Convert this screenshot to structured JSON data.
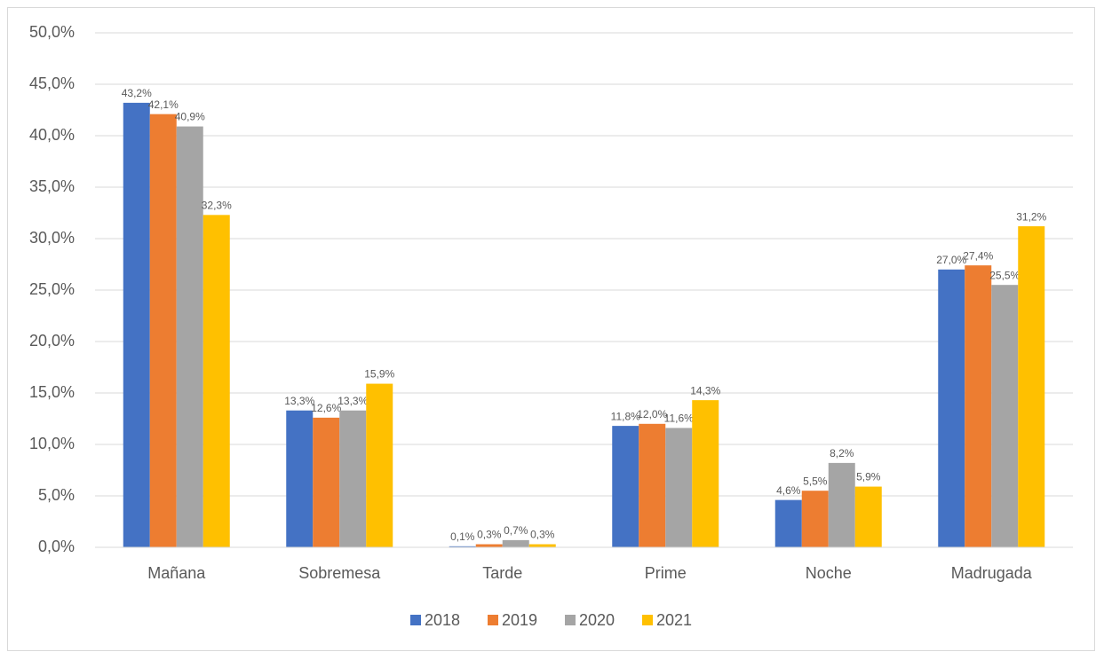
{
  "chart_data": {
    "type": "bar",
    "categories": [
      "Mañana",
      "Sobremesa",
      "Tarde",
      "Prime",
      "Noche",
      "Madrugada"
    ],
    "series": [
      {
        "name": "2018",
        "color": "#4472c4",
        "values": [
          43.2,
          13.3,
          0.1,
          11.8,
          4.6,
          27.0
        ],
        "value_labels": [
          "43,2%",
          "13,3%",
          "0,1%",
          "11,8%",
          "4,6%",
          "27,0%"
        ]
      },
      {
        "name": "2019",
        "color": "#ed7d31",
        "values": [
          42.1,
          12.6,
          0.3,
          12.0,
          5.5,
          27.4
        ],
        "value_labels": [
          "42,1%",
          "12,6%",
          "0,3%",
          "12,0%",
          "5,5%",
          "27,4%"
        ]
      },
      {
        "name": "2020",
        "color": "#a5a5a5",
        "values": [
          40.9,
          13.3,
          0.7,
          11.6,
          8.2,
          25.5
        ],
        "value_labels": [
          "40,9%",
          "13,3%",
          "0,7%",
          "11,6%",
          "8,2%",
          "25,5%"
        ]
      },
      {
        "name": "2021",
        "color": "#ffc000",
        "values": [
          32.3,
          15.9,
          0.3,
          14.3,
          5.9,
          31.2
        ],
        "value_labels": [
          "32,3%",
          "15,9%",
          "0,3%",
          "14,3%",
          "5,9%",
          "31,2%"
        ]
      }
    ],
    "ylim": [
      0,
      50
    ],
    "yticks": [
      {
        "value": 0,
        "label": "0,0%"
      },
      {
        "value": 5,
        "label": "5,0%"
      },
      {
        "value": 10,
        "label": "10,0%"
      },
      {
        "value": 15,
        "label": "15,0%"
      },
      {
        "value": 20,
        "label": "20,0%"
      },
      {
        "value": 25,
        "label": "25,0%"
      },
      {
        "value": 30,
        "label": "30,0%"
      },
      {
        "value": 35,
        "label": "35,0%"
      },
      {
        "value": 40,
        "label": "40,0%"
      },
      {
        "value": 45,
        "label": "45,0%"
      },
      {
        "value": 50,
        "label": "50,0%"
      }
    ],
    "grid": true,
    "legend": "bottom"
  }
}
